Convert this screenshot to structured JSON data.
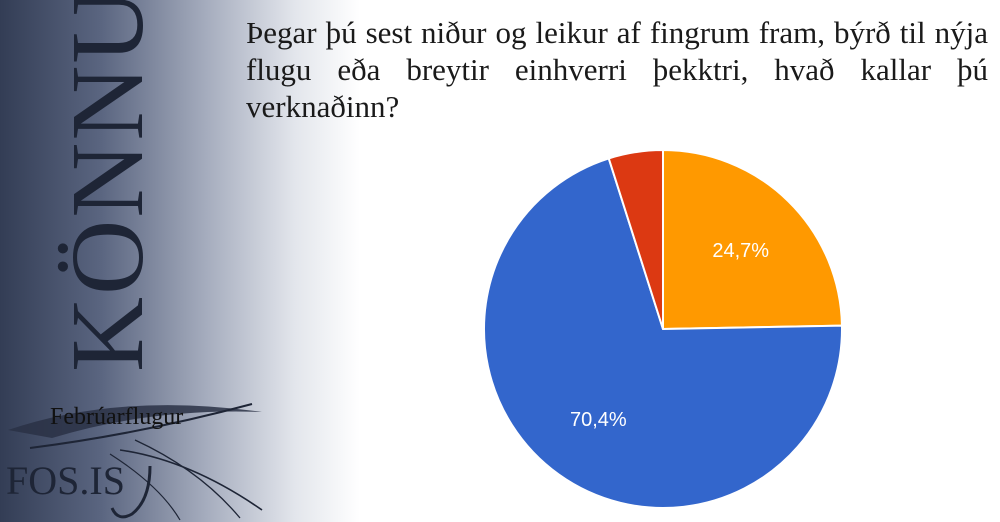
{
  "side_title": "KÖNNUN",
  "logo": {
    "name": "Febrúarflugur",
    "site": "FOS.IS"
  },
  "question": "Þegar þú sest niður og leikur af fingrum fram, býrð til nýja flugu eða breytir einhverri þekktri, hvað kallar þú verknaðinn?",
  "chart_data": {
    "type": "pie",
    "title": "",
    "slices": [
      {
        "value": 24.7,
        "label": "24,7%",
        "color": "#ff9900",
        "show_label": true
      },
      {
        "value": 70.4,
        "label": "70,4%",
        "color": "#3366cc",
        "show_label": true
      },
      {
        "value": 4.9,
        "label": "",
        "color": "#dc3912",
        "show_label": false
      }
    ],
    "start": "12 o'clock",
    "direction": "clockwise",
    "legend": "none"
  }
}
